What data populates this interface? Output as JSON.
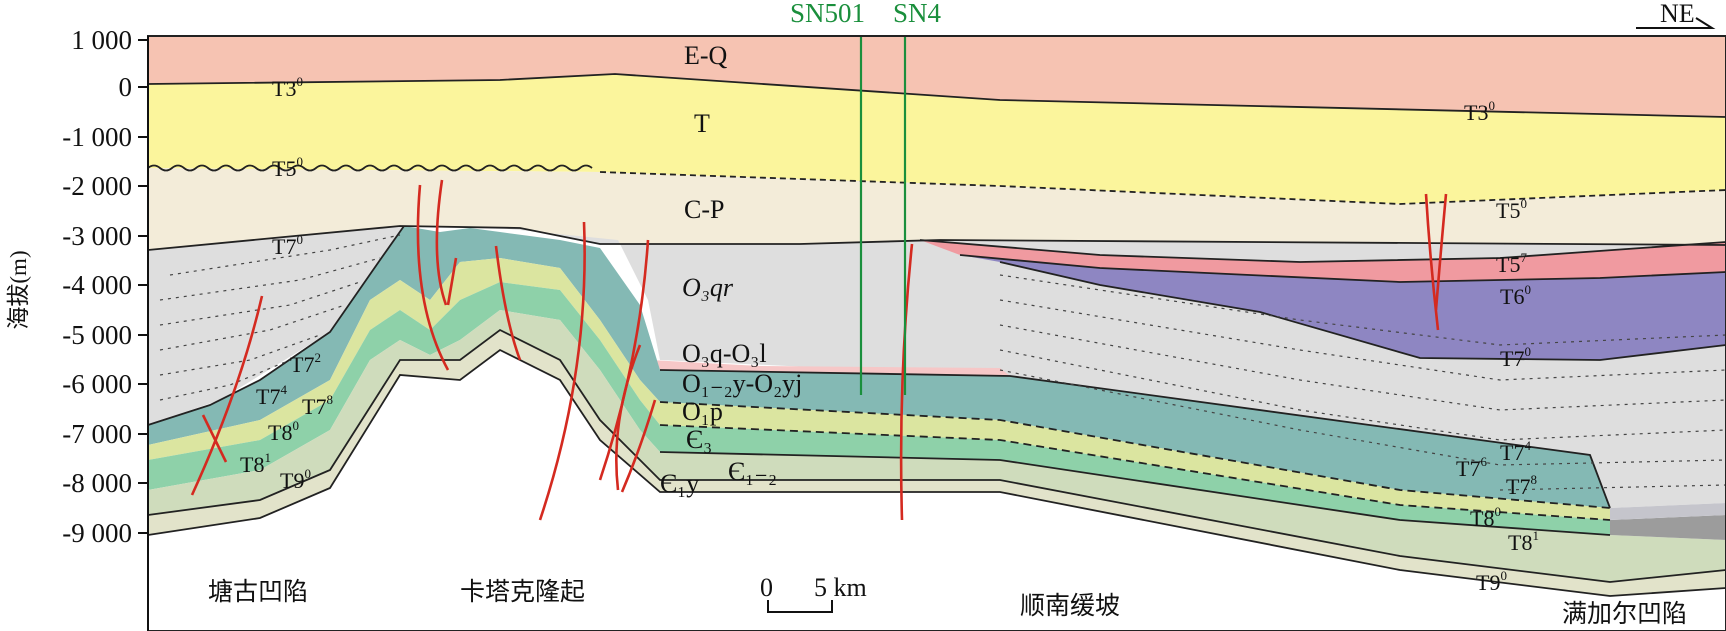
{
  "figure": {
    "y_axis": {
      "title": "海拔(m)",
      "ticks": [
        "1 000",
        "0",
        "-1 000",
        "-2 000",
        "-3 000",
        "-4 000",
        "-5 000",
        "-6 000",
        "-7 000",
        "-8 000",
        "-9 000"
      ]
    },
    "direction_label": "NE",
    "wells": [
      {
        "name": "SN501"
      },
      {
        "name": "SN4"
      }
    ],
    "scale_bar": {
      "zero": "0",
      "value": "5 km"
    },
    "regions": [
      {
        "name": "塘古凹陷"
      },
      {
        "name": "卡塔克隆起"
      },
      {
        "name": "顺南缓坡"
      },
      {
        "name": "满加尔凹陷"
      }
    ],
    "formations": {
      "eq": "E-Q",
      "t": "T",
      "cp": "C-P",
      "o3qr": "O₃qr",
      "o3q_o3l": "O₃q-O₃l",
      "o12y_o2yj": "O₁₋₂y-O₂yj",
      "o1p": "O₁p",
      "e3": "Є₃",
      "e12": "Є₁₋₂",
      "e1y": "Є₁y"
    },
    "horizons": {
      "t3_main": "T3",
      "t3_main_sup": "0",
      "t3_east": "T3",
      "t3_east_sup": "0",
      "t5_main": "T5",
      "t5_main_sup": "0",
      "t5_east": "T5",
      "t5_east_sup": "0",
      "t7_main": "T7",
      "t7_main_sup": "0",
      "t57": "T5",
      "t57_sup": "7",
      "t6": "T6",
      "t6_sup": "0",
      "t7_east": "T7",
      "t7_east_sup": "0",
      "t72_w": "T7",
      "t72_w_sup": "2",
      "t74_w": "T7",
      "t74_w_sup": "4",
      "t78_w": "T7",
      "t78_w_sup": "8",
      "t80_w": "T8",
      "t80_w_sup": "0",
      "t81_w": "T8",
      "t81_w_sup": "1",
      "t90_w": "T9",
      "t90_w_sup": "0",
      "t74_e": "T7",
      "t74_e_sup": "4",
      "t76_e": "T7",
      "t76_e_sup": "6",
      "t78_e": "T7",
      "t78_e_sup": "8",
      "t80_e": "T8",
      "t80_e_sup": "0",
      "t81_e": "T8",
      "t81_e_sup": "1",
      "t90_e": "T9",
      "t90_e_sup": "0"
    },
    "colors": {
      "eq": "#f6c3b2",
      "t": "#fbf59c",
      "cp": "#f3ecd9",
      "o3qr": "#dedede",
      "pink_layer": "#f2b4b4",
      "o12y": "#84b9b4",
      "o1p": "#dbe5a0",
      "e3": "#8ed1a9",
      "e12": "#cfdcbc",
      "e1y": "#e2e3ca",
      "basin_red": "#f09aa0",
      "basin_purple": "#8e86c2",
      "basement_gray": "#9c9c9c",
      "fault": "#d42a20",
      "well": "#1a8f3c"
    }
  }
}
